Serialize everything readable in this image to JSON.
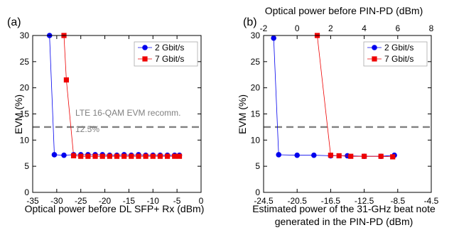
{
  "chart_data": [
    {
      "type": "line",
      "panel_label": "(a)",
      "xlabel": "Optical power before DL SFP+ Rx (dBm)",
      "ylabel": "EVM (%)",
      "xlim": [
        -35,
        0
      ],
      "ylim": [
        0,
        30
      ],
      "xticks": [
        "-35",
        "-30",
        "-25",
        "-20",
        "-15",
        "-10",
        "-5",
        "0"
      ],
      "yticks": [
        "0",
        "5",
        "10",
        "15",
        "20",
        "25",
        "30"
      ],
      "threshold": {
        "value": 12.5,
        "label_line1": "LTE 16-QAM EVM recomm.",
        "label_line2": "12.5%"
      },
      "legend": "top-right",
      "series": [
        {
          "name": "2 Gbit/s",
          "color": "#0000ee",
          "marker": "circle",
          "x": [
            -31.5,
            -30.5,
            -28.5,
            -26.5,
            -25.0,
            -23.5,
            -22.0,
            -20.5,
            -19.0,
            -17.5,
            -16.0,
            -14.5,
            -13.0,
            -11.5,
            -10.0,
            -8.5,
            -7.0,
            -5.5,
            -4.5
          ],
          "y": [
            30,
            7.2,
            7.1,
            7.2,
            7.2,
            7.2,
            7.2,
            7.2,
            7.1,
            7.1,
            7.2,
            7.1,
            7.2,
            7.1,
            7.1,
            7.1,
            7.1,
            7.1,
            7.1
          ]
        },
        {
          "name": "7 Gbit/s",
          "color": "#ee0000",
          "marker": "square",
          "x": [
            -28.5,
            -28.0,
            -26.5,
            -25.0,
            -23.5,
            -22.0,
            -20.5,
            -19.0,
            -17.5,
            -16.0,
            -14.5,
            -13.0,
            -11.5,
            -10.0,
            -8.5,
            -7.0,
            -5.5,
            -4.5
          ],
          "y": [
            30,
            21.5,
            7.0,
            6.9,
            6.9,
            6.9,
            6.9,
            6.9,
            6.9,
            6.9,
            6.9,
            6.9,
            6.9,
            6.9,
            6.9,
            6.9,
            6.9,
            6.9
          ]
        }
      ]
    },
    {
      "type": "line",
      "panel_label": "(b)",
      "xlabel_line1": "Estimated power of the 31-GHz beat note",
      "xlabel_line2": "generated in the PIN-PD (dBm)",
      "top_xlabel": "Optical power before PIN-PD (dBm)",
      "ylabel": "EVM (%)",
      "xlim": [
        -2,
        8
      ],
      "ylim": [
        0,
        30
      ],
      "xticks_bottom": [
        "-24.5",
        "-20.5",
        "-16.5",
        "-12.5",
        "-8.5",
        "-4.5"
      ],
      "xticks_top": [
        "-2",
        "0",
        "2",
        "4",
        "6",
        "8"
      ],
      "yticks": [
        "0",
        "5",
        "10",
        "15",
        "20",
        "25",
        "30"
      ],
      "threshold": {
        "value": 12.5
      },
      "legend": "top-right",
      "series": [
        {
          "name": "2 Gbit/s",
          "color": "#0000ee",
          "marker": "circle",
          "x": [
            -1.4,
            -1.1,
            0.0,
            1.0,
            2.0,
            3.0,
            4.0,
            5.0,
            5.8
          ],
          "y": [
            29.5,
            7.2,
            7.1,
            7.1,
            7.0,
            7.0,
            6.9,
            6.9,
            7.1
          ]
        },
        {
          "name": "7 Gbit/s",
          "color": "#ee0000",
          "marker": "square",
          "x": [
            1.2,
            2.0,
            2.5,
            3.2,
            4.0,
            5.0,
            5.7
          ],
          "y": [
            30,
            7.1,
            7.0,
            6.9,
            6.9,
            6.9,
            6.8
          ]
        }
      ]
    }
  ]
}
